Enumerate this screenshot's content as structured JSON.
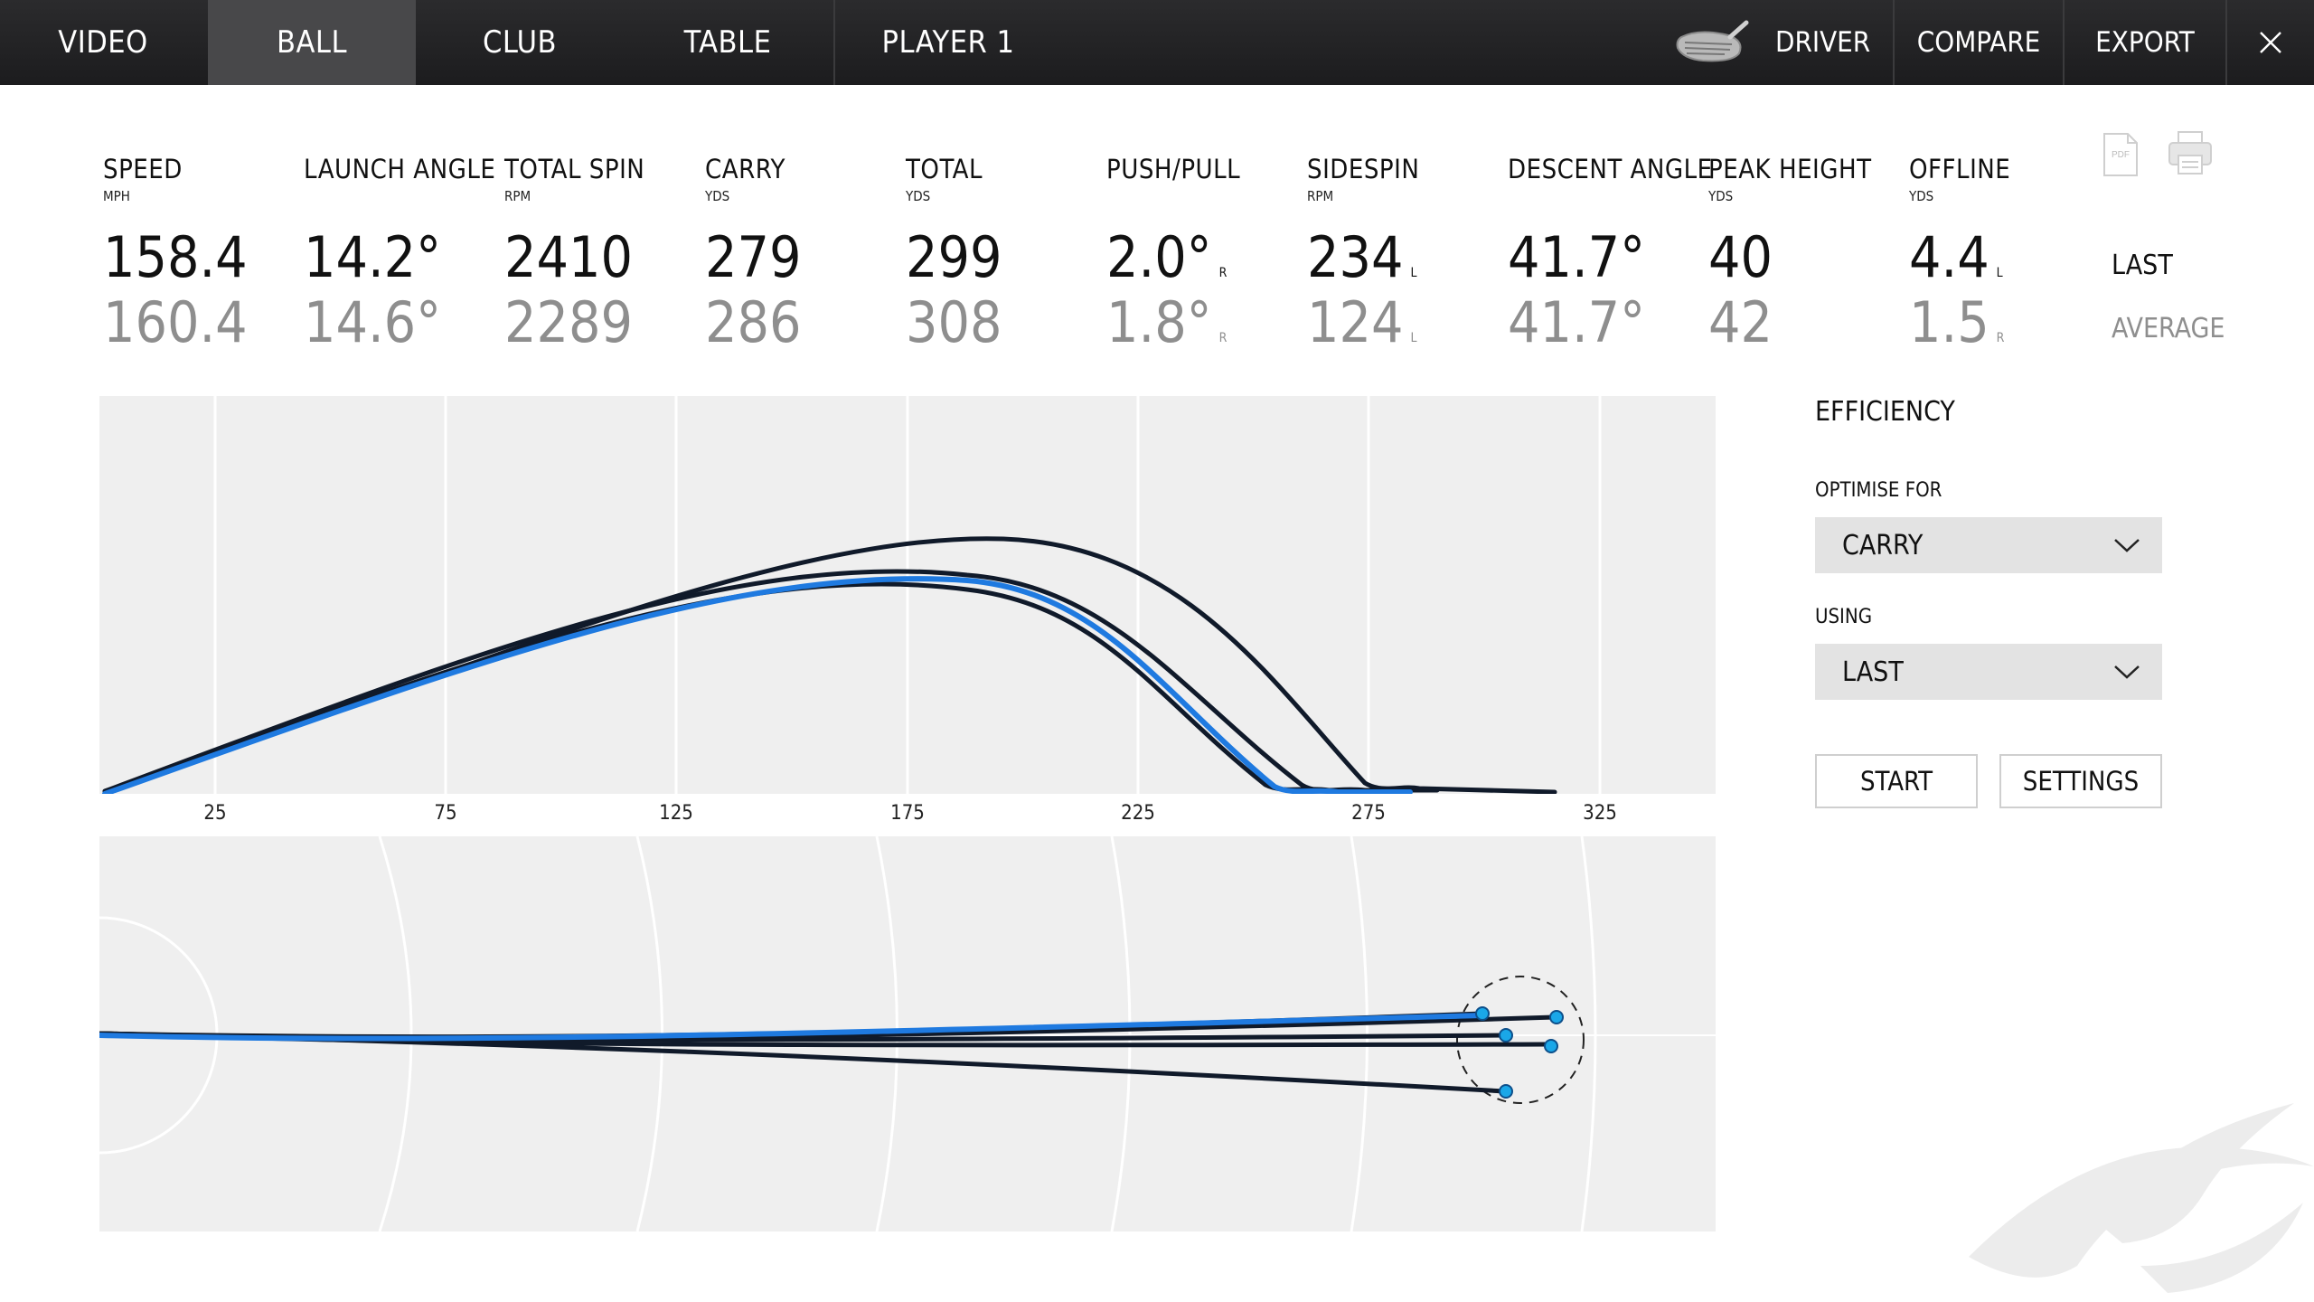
{
  "nav": {
    "tabs": [
      "VIDEO",
      "BALL",
      "CLUB",
      "TABLE"
    ],
    "active_tab": "BALL",
    "player": "PLAYER 1",
    "club": "DRIVER",
    "compare": "COMPARE",
    "export": "EXPORT"
  },
  "stats": [
    {
      "label": "SPEED",
      "unit": "MPH",
      "last": "158.4",
      "last_dir": "",
      "avg": "160.4",
      "avg_dir": ""
    },
    {
      "label": "LAUNCH ANGLE",
      "unit": "",
      "last": "14.2°",
      "last_dir": "",
      "avg": "14.6°",
      "avg_dir": ""
    },
    {
      "label": "TOTAL SPIN",
      "unit": "RPM",
      "last": "2410",
      "last_dir": "",
      "avg": "2289",
      "avg_dir": ""
    },
    {
      "label": "CARRY",
      "unit": "YDS",
      "last": "279",
      "last_dir": "",
      "avg": "286",
      "avg_dir": ""
    },
    {
      "label": "TOTAL",
      "unit": "YDS",
      "last": "299",
      "last_dir": "",
      "avg": "308",
      "avg_dir": ""
    },
    {
      "label": "PUSH/PULL",
      "unit": "",
      "last": "2.0°",
      "last_dir": "R",
      "avg": "1.8°",
      "avg_dir": "R"
    },
    {
      "label": "SIDESPIN",
      "unit": "RPM",
      "last": "234",
      "last_dir": "L",
      "avg": "124",
      "avg_dir": "L"
    },
    {
      "label": "DESCENT ANGLE",
      "unit": "",
      "last": "41.7°",
      "last_dir": "",
      "avg": "41.7°",
      "avg_dir": ""
    },
    {
      "label": "PEAK HEIGHT",
      "unit": "YDS",
      "last": "40",
      "last_dir": "",
      "avg": "42",
      "avg_dir": ""
    },
    {
      "label": "OFFLINE",
      "unit": "YDS",
      "last": "4.4",
      "last_dir": "L",
      "avg": "1.5",
      "avg_dir": "R"
    }
  ],
  "row_labels": {
    "last": "LAST",
    "average": "AVERAGE"
  },
  "pdf_label": "PDF",
  "chart": {
    "x_ticks": [
      "25",
      "75",
      "125",
      "175",
      "225",
      "275",
      "325"
    ]
  },
  "efficiency": {
    "title": "EFFICIENCY",
    "optimise_label": "OPTIMISE FOR",
    "optimise_value": "CARRY",
    "using_label": "USING",
    "using_value": "LAST",
    "start": "START",
    "settings": "SETTINGS"
  },
  "colors": {
    "accent_blue": "#1f7ae0",
    "shot_dark": "#14233a",
    "marker": "#1aa7e8"
  },
  "icons": {
    "close": "close-icon",
    "club": "driver-club-icon",
    "pdf": "pdf-icon",
    "print": "print-icon",
    "logo": "eye-logo"
  }
}
